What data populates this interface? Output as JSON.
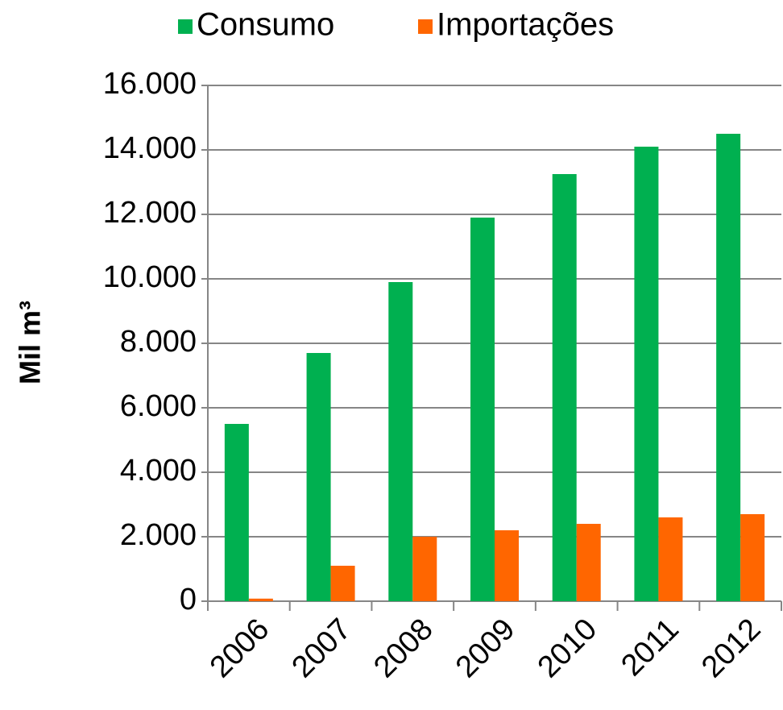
{
  "chart_data": {
    "type": "bar",
    "categories": [
      "2006",
      "2007",
      "2008",
      "2009",
      "2010",
      "2011",
      "2012"
    ],
    "series": [
      {
        "name": "Consumo",
        "color": "#00b050",
        "values": [
          5500,
          7700,
          9900,
          11900,
          13250,
          14100,
          14500
        ]
      },
      {
        "name": "Importações",
        "color": "#ff6600",
        "values": [
          80,
          1100,
          2000,
          2200,
          2400,
          2600,
          2700
        ]
      }
    ],
    "y_label": "Mil m³",
    "ylim": [
      0,
      16000
    ],
    "yticks": [
      0,
      {
        "value": 2000,
        "label": "2.000"
      },
      {
        "value": 4000,
        "label": "4.000"
      },
      {
        "value": 6000,
        "label": "6.000"
      },
      {
        "value": 8000,
        "label": "8.000"
      },
      {
        "value": 10000,
        "label": "10.000"
      },
      {
        "value": 12000,
        "label": "12.000"
      },
      {
        "value": 14000,
        "label": "14.000"
      },
      {
        "value": 16000,
        "label": "16.000"
      }
    ],
    "grid": true,
    "legend": "top"
  }
}
